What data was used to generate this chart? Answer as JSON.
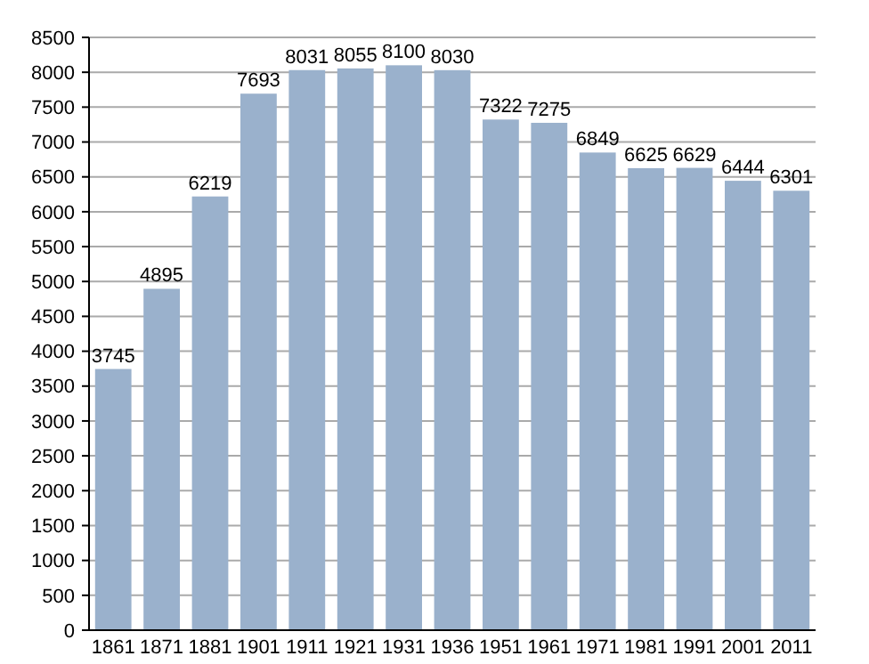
{
  "chart_data": {
    "type": "bar",
    "categories": [
      "1861",
      "1871",
      "1881",
      "1901",
      "1911",
      "1921",
      "1931",
      "1936",
      "1951",
      "1961",
      "1971",
      "1981",
      "1991",
      "2001",
      "2011"
    ],
    "values": [
      3745,
      4895,
      6219,
      7693,
      8031,
      8055,
      8100,
      8030,
      7322,
      7275,
      6849,
      6625,
      6629,
      6444,
      6301
    ],
    "color": "#9ab1cc",
    "ylim": [
      0,
      8500
    ],
    "yticks": [
      0,
      500,
      1000,
      1500,
      2000,
      2500,
      3000,
      3500,
      4000,
      4500,
      5000,
      5500,
      6000,
      6500,
      7000,
      7500,
      8000,
      8500
    ],
    "grid": "y",
    "data_labels": true
  }
}
